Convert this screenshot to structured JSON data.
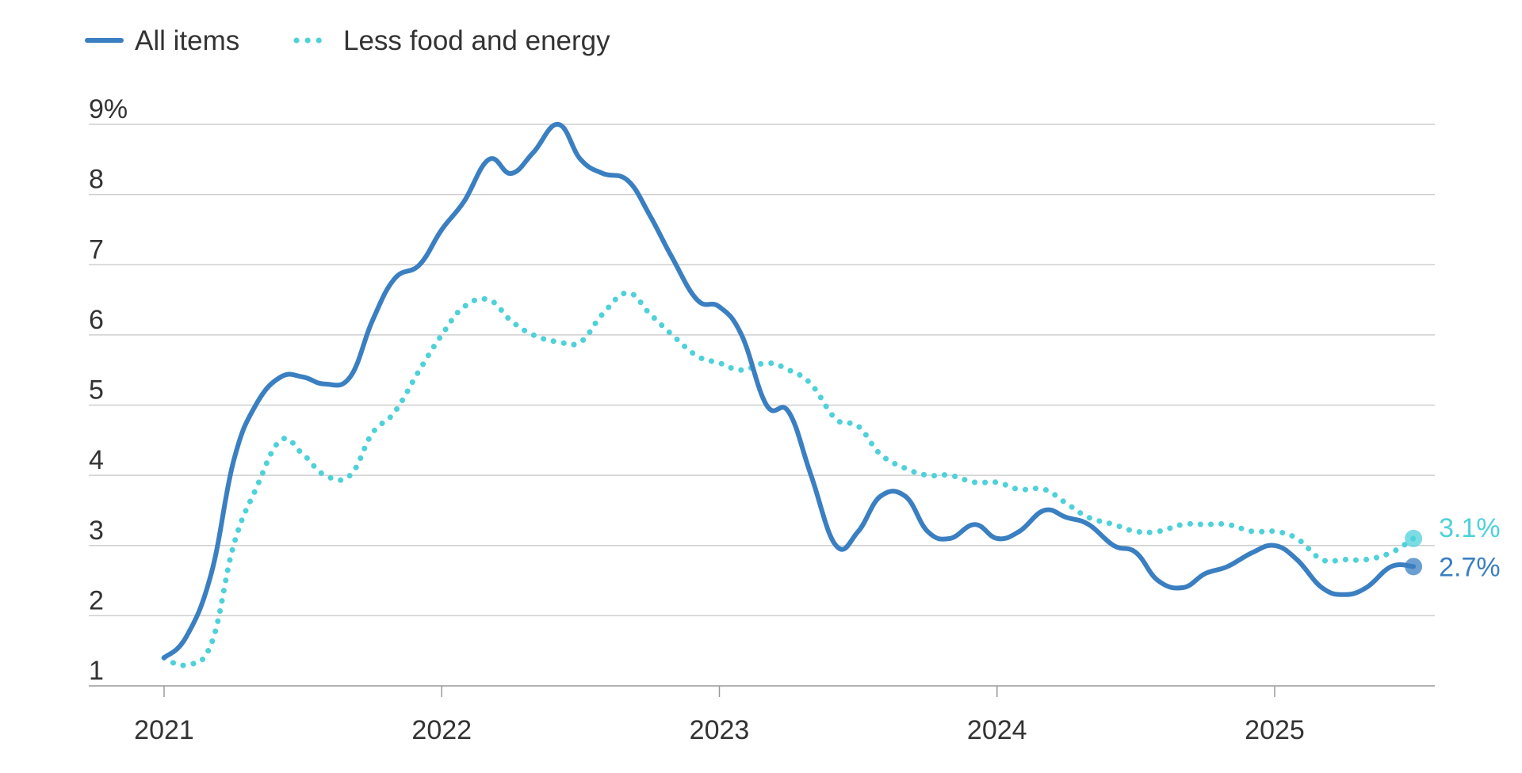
{
  "chart_data": {
    "type": "line",
    "title": "",
    "xlabel": "",
    "ylabel": "",
    "ylim": [
      1,
      9
    ],
    "y_ticks": [
      {
        "value": 9,
        "label": "9%"
      },
      {
        "value": 8,
        "label": "8"
      },
      {
        "value": 7,
        "label": "7"
      },
      {
        "value": 6,
        "label": "6"
      },
      {
        "value": 5,
        "label": "5"
      },
      {
        "value": 4,
        "label": "4"
      },
      {
        "value": 3,
        "label": "3"
      },
      {
        "value": 2,
        "label": "2"
      },
      {
        "value": 1,
        "label": "1"
      }
    ],
    "x_range": [
      2020.72,
      2025.67
    ],
    "x_ticks": [
      {
        "value": 2021,
        "label": "2021"
      },
      {
        "value": 2022,
        "label": "2022"
      },
      {
        "value": 2023,
        "label": "2023"
      },
      {
        "value": 2024,
        "label": "2024"
      },
      {
        "value": 2025,
        "label": "2025"
      }
    ],
    "grid": true,
    "legend_position": "top-left",
    "series": [
      {
        "name": "All items",
        "style": "solid",
        "color": "#3a7fc1",
        "end_label": "2.7%",
        "points": [
          [
            2021.0,
            1.4
          ],
          [
            2021.08,
            1.7
          ],
          [
            2021.17,
            2.6
          ],
          [
            2021.25,
            4.2
          ],
          [
            2021.33,
            5.0
          ],
          [
            2021.42,
            5.4
          ],
          [
            2021.5,
            5.4
          ],
          [
            2021.58,
            5.3
          ],
          [
            2021.67,
            5.4
          ],
          [
            2021.75,
            6.2
          ],
          [
            2021.83,
            6.8
          ],
          [
            2021.92,
            7.0
          ],
          [
            2022.0,
            7.5
          ],
          [
            2022.08,
            7.9
          ],
          [
            2022.17,
            8.5
          ],
          [
            2022.25,
            8.3
          ],
          [
            2022.33,
            8.6
          ],
          [
            2022.42,
            9.0
          ],
          [
            2022.5,
            8.5
          ],
          [
            2022.58,
            8.3
          ],
          [
            2022.67,
            8.2
          ],
          [
            2022.75,
            7.7
          ],
          [
            2022.83,
            7.1
          ],
          [
            2022.92,
            6.5
          ],
          [
            2023.0,
            6.4
          ],
          [
            2023.08,
            6.0
          ],
          [
            2023.17,
            5.0
          ],
          [
            2023.25,
            4.9
          ],
          [
            2023.33,
            4.0
          ],
          [
            2023.42,
            3.0
          ],
          [
            2023.5,
            3.2
          ],
          [
            2023.58,
            3.7
          ],
          [
            2023.67,
            3.7
          ],
          [
            2023.75,
            3.2
          ],
          [
            2023.83,
            3.1
          ],
          [
            2023.92,
            3.3
          ],
          [
            2024.0,
            3.1
          ],
          [
            2024.08,
            3.2
          ],
          [
            2024.17,
            3.5
          ],
          [
            2024.25,
            3.4
          ],
          [
            2024.33,
            3.3
          ],
          [
            2024.42,
            3.0
          ],
          [
            2024.5,
            2.9
          ],
          [
            2024.58,
            2.5
          ],
          [
            2024.67,
            2.4
          ],
          [
            2024.75,
            2.6
          ],
          [
            2024.83,
            2.7
          ],
          [
            2024.92,
            2.9
          ],
          [
            2025.0,
            3.0
          ],
          [
            2025.08,
            2.8
          ],
          [
            2025.17,
            2.4
          ],
          [
            2025.25,
            2.3
          ],
          [
            2025.33,
            2.4
          ],
          [
            2025.42,
            2.7
          ],
          [
            2025.5,
            2.7
          ]
        ]
      },
      {
        "name": "Less food and energy",
        "style": "dotted",
        "color": "#4fd1d9",
        "end_label": "3.1%",
        "points": [
          [
            2021.0,
            1.4
          ],
          [
            2021.08,
            1.3
          ],
          [
            2021.17,
            1.6
          ],
          [
            2021.25,
            3.0
          ],
          [
            2021.33,
            3.8
          ],
          [
            2021.42,
            4.5
          ],
          [
            2021.5,
            4.3
          ],
          [
            2021.58,
            4.0
          ],
          [
            2021.67,
            4.0
          ],
          [
            2021.75,
            4.6
          ],
          [
            2021.83,
            4.9
          ],
          [
            2021.92,
            5.5
          ],
          [
            2022.0,
            6.0
          ],
          [
            2022.08,
            6.4
          ],
          [
            2022.17,
            6.5
          ],
          [
            2022.25,
            6.2
          ],
          [
            2022.33,
            6.0
          ],
          [
            2022.42,
            5.9
          ],
          [
            2022.5,
            5.9
          ],
          [
            2022.58,
            6.3
          ],
          [
            2022.67,
            6.6
          ],
          [
            2022.75,
            6.3
          ],
          [
            2022.83,
            6.0
          ],
          [
            2022.92,
            5.7
          ],
          [
            2023.0,
            5.6
          ],
          [
            2023.08,
            5.5
          ],
          [
            2023.17,
            5.6
          ],
          [
            2023.25,
            5.5
          ],
          [
            2023.33,
            5.3
          ],
          [
            2023.42,
            4.8
          ],
          [
            2023.5,
            4.7
          ],
          [
            2023.58,
            4.3
          ],
          [
            2023.67,
            4.1
          ],
          [
            2023.75,
            4.0
          ],
          [
            2023.83,
            4.0
          ],
          [
            2023.92,
            3.9
          ],
          [
            2024.0,
            3.9
          ],
          [
            2024.08,
            3.8
          ],
          [
            2024.17,
            3.8
          ],
          [
            2024.25,
            3.6
          ],
          [
            2024.33,
            3.4
          ],
          [
            2024.42,
            3.3
          ],
          [
            2024.5,
            3.2
          ],
          [
            2024.58,
            3.2
          ],
          [
            2024.67,
            3.3
          ],
          [
            2024.75,
            3.3
          ],
          [
            2024.83,
            3.3
          ],
          [
            2024.92,
            3.2
          ],
          [
            2025.0,
            3.2
          ],
          [
            2025.08,
            3.1
          ],
          [
            2025.17,
            2.8
          ],
          [
            2025.25,
            2.8
          ],
          [
            2025.33,
            2.8
          ],
          [
            2025.42,
            2.9
          ],
          [
            2025.5,
            3.1
          ]
        ]
      }
    ]
  }
}
